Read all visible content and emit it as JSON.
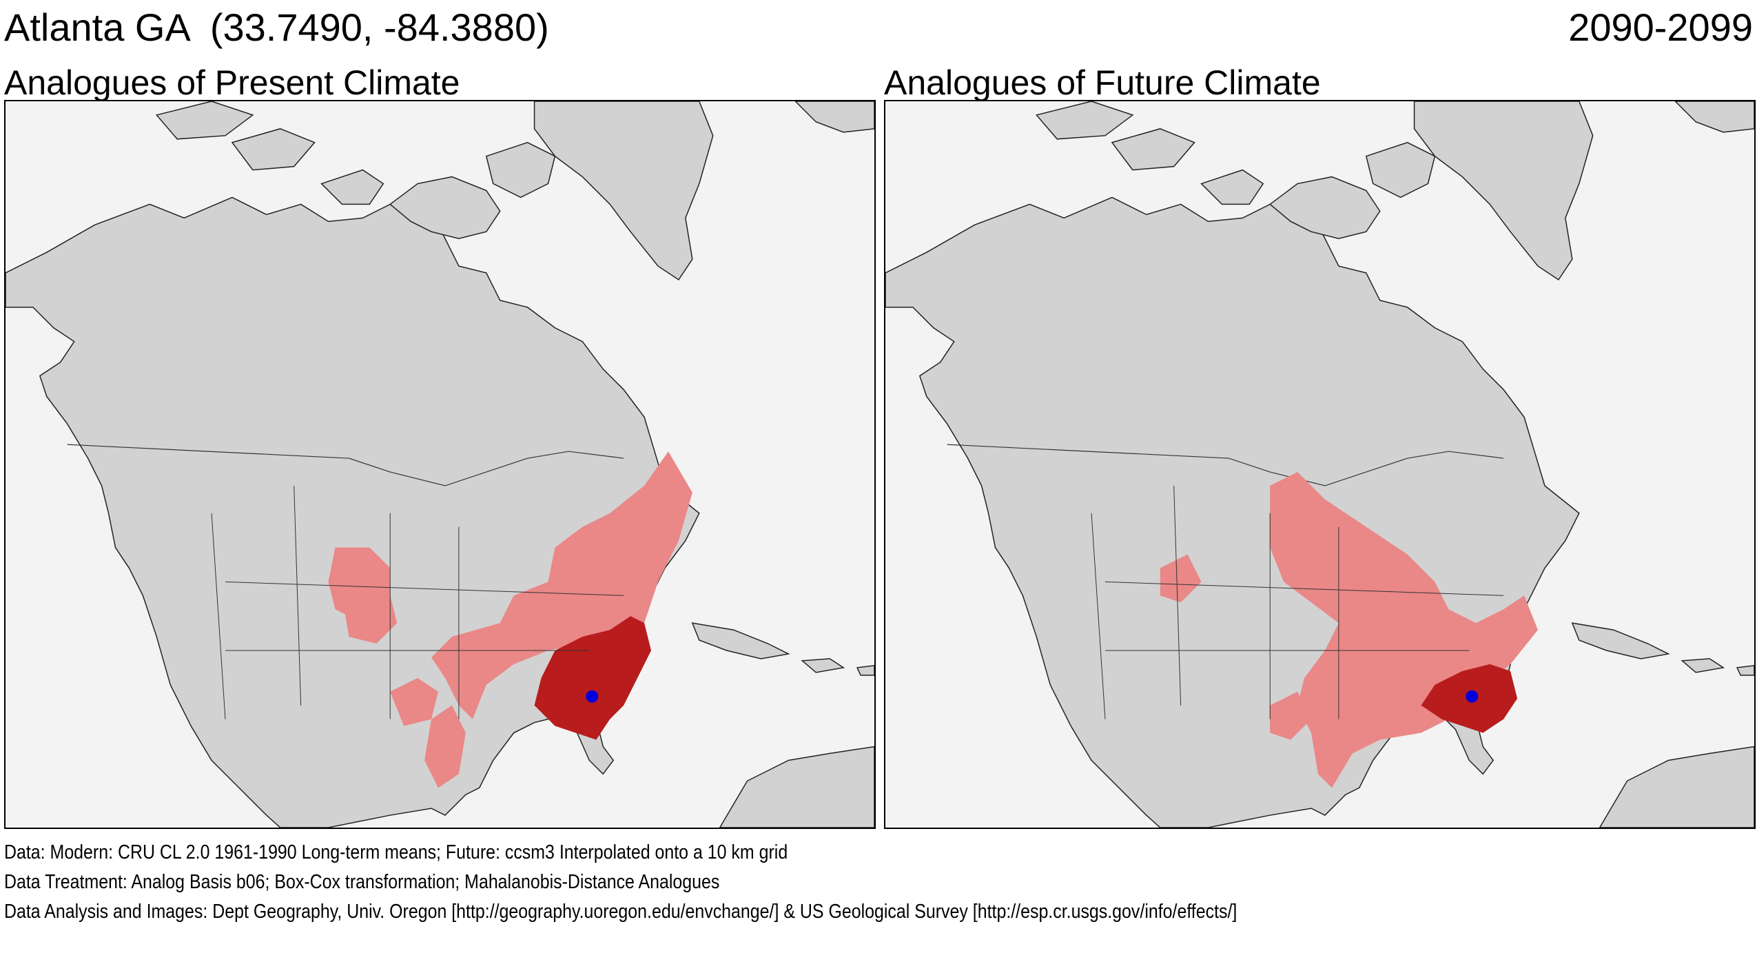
{
  "header": {
    "location_title": "Atlanta GA  (33.7490, -84.3880)",
    "period": "2090-2099"
  },
  "panels": [
    {
      "title": "Analogues of Present Climate"
    },
    {
      "title": "Analogues of Future Climate"
    }
  ],
  "footer": {
    "data_line": "Data:  Modern: CRU CL 2.0 1961-1990 Long-term means; Future: ccsm3 Interpolated onto a 10 km grid",
    "treatment_line": "Data Treatment:  Analog Basis b06; Box-Cox transformation; Mahalanobis-Distance Analogues",
    "analysis_line": "Data Analysis and Images:  Dept Geography, Univ. Oregon [http://geography.uoregon.edu/envchange/] & US Geological Survey [http://esp.cr.usgs.gov/info/effects/]"
  },
  "map_style": {
    "ocean_color": "#f3f3f3",
    "land_color": "#d2d2d2",
    "analogue_light_color": "#ea8787",
    "analogue_dark_color": "#b81c1c",
    "location_marker_color": "#0000dd"
  },
  "location_marker": {
    "lat": 33.749,
    "lon": -84.388
  }
}
